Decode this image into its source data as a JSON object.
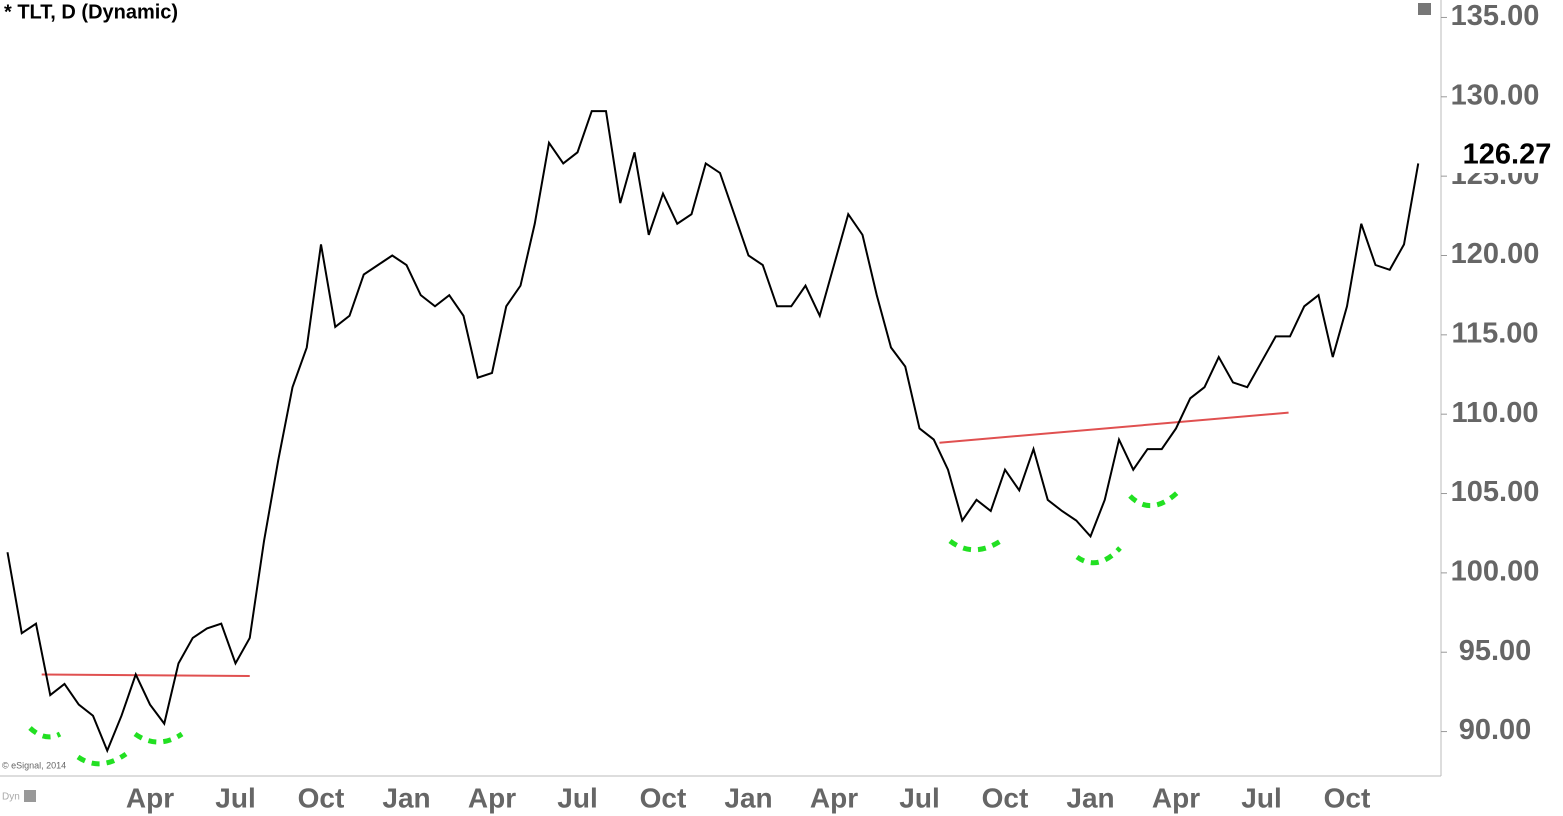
{
  "chart_data": {
    "type": "line",
    "title": "* TLT, D (Dynamic)",
    "credit": "© eSignal, 2014",
    "corner_label": "Dyn",
    "categories": [
      null,
      null,
      null,
      null,
      null,
      null,
      null,
      null,
      null,
      null,
      "Apr",
      null,
      null,
      null,
      null,
      null,
      "Jul",
      null,
      null,
      null,
      null,
      null,
      "Oct",
      null,
      null,
      null,
      null,
      null,
      "Jan",
      null,
      null,
      null,
      null,
      null,
      "Apr",
      null,
      null,
      null,
      null,
      null,
      "Jul",
      null,
      null,
      null,
      null,
      null,
      "Oct",
      null,
      null,
      null,
      null,
      null,
      "Jan",
      null,
      null,
      null,
      null,
      null,
      "Apr",
      null,
      null,
      null,
      null,
      null,
      "Jul",
      null,
      null,
      null,
      null,
      null,
      "Oct",
      null,
      null,
      null,
      null,
      null,
      "Jan",
      null,
      null,
      null,
      null,
      null,
      "Apr",
      null,
      null,
      null,
      null,
      null,
      "Jul",
      null,
      null,
      null,
      null,
      null,
      "Oct",
      null,
      null,
      null,
      null,
      null
    ],
    "series": [
      {
        "name": "TLT",
        "color": "#000000",
        "values": [
          101.3,
          96.2,
          96.8,
          92.3,
          93.0,
          91.7,
          91.0,
          88.8,
          91.0,
          93.6,
          91.7,
          90.5,
          94.3,
          95.9,
          96.5,
          96.8,
          94.3,
          95.9,
          102,
          107.1,
          111.7,
          114.2,
          120.7,
          115.5,
          116.2,
          118.8,
          119.4,
          120.0,
          119.4,
          117.5,
          116.8,
          117.5,
          116.2,
          112.3,
          112.6,
          116.8,
          118.1,
          122.0,
          127.1,
          125.8,
          126.5,
          129.1,
          129.1,
          123.3,
          126.5,
          121.3,
          123.9,
          122.0,
          122.6,
          125.8,
          125.2,
          122.6,
          120.0,
          119.4,
          116.8,
          116.8,
          118.1,
          116.2,
          119.4,
          122.6,
          121.3,
          117.5,
          114.2,
          113.0,
          109.1,
          108.4,
          106.5,
          103.3,
          104.6,
          103.9,
          106.5,
          105.2,
          107.8,
          104.6,
          103.9,
          103.3,
          102.3,
          104.6,
          108.4,
          106.5,
          107.8,
          107.8,
          109.1,
          111.0,
          111.7,
          113.6,
          112.0,
          111.7,
          113.3,
          114.9,
          114.9,
          116.8,
          117.5,
          113.6,
          116.8,
          122.0,
          119.4,
          119.1,
          120.7,
          125.8
        ]
      }
    ],
    "last_price": 126.27,
    "trendlines": [
      {
        "color": "#e05050",
        "start_index": 2.4,
        "start_value": 93.6,
        "end_index": 17,
        "end_value": 93.5
      },
      {
        "color": "#e05050",
        "start_index": 65.4,
        "start_value": 108.2,
        "end_index": 89.9,
        "end_value": 110.1
      }
    ],
    "ylim": [
      87.2,
      136.1
    ],
    "yticks": [
      {
        "value": 90,
        "label": "90.00"
      },
      {
        "value": 95,
        "label": "95.00"
      },
      {
        "value": 100,
        "label": "100.00"
      },
      {
        "value": 105,
        "label": "105.00"
      },
      {
        "value": 110,
        "label": "110.00"
      },
      {
        "value": 115,
        "label": "115.00"
      },
      {
        "value": 120,
        "label": "120.00"
      },
      {
        "value": 125,
        "label": "125.00"
      },
      {
        "value": 130,
        "label": "130.00"
      },
      {
        "value": 135,
        "label": "135.00"
      }
    ]
  }
}
